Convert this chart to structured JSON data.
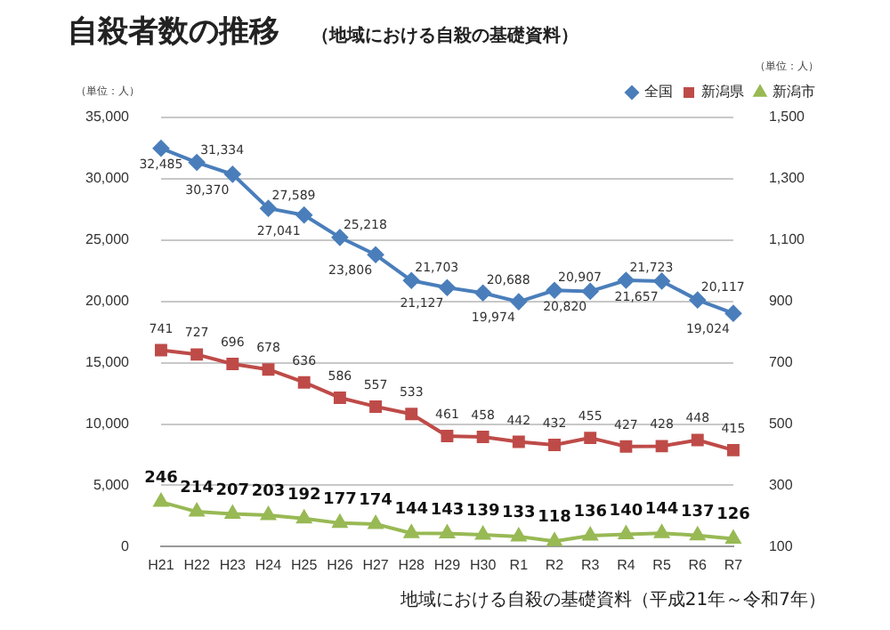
{
  "chart_data": {
    "type": "line",
    "title": "自殺者数の推移",
    "subtitle": "（地域における自殺の基礎資料）",
    "categories": [
      "H21",
      "H22",
      "H23",
      "H24",
      "H25",
      "H26",
      "H27",
      "H28",
      "H29",
      "H30",
      "R1",
      "R2",
      "R3",
      "R4",
      "R5",
      "R6",
      "R7"
    ],
    "series": [
      {
        "name": "全国",
        "color": "#4a7ebb",
        "marker": "diamond",
        "values": [
          32485,
          31334,
          30370,
          27589,
          27041,
          25218,
          23806,
          21703,
          21127,
          20688,
          19974,
          20907,
          20820,
          21723,
          21657,
          20117,
          19024
        ],
        "value_labels": [
          "32,485",
          "31,334",
          "30,370",
          "27,589",
          "27,041",
          "25,218",
          "23,806",
          "21,703",
          "21,127",
          "20,688",
          "19,974",
          "20,907",
          "20,820",
          "21,723",
          "21,657",
          "20,117",
          "19,024"
        ]
      },
      {
        "name": "新潟県",
        "color": "#be4b48",
        "marker": "square",
        "axis": "y2",
        "values": [
          741,
          727,
          696,
          678,
          636,
          586,
          557,
          533,
          461,
          458,
          442,
          432,
          455,
          427,
          428,
          448,
          415
        ]
      },
      {
        "name": "新潟市",
        "color": "#98b954",
        "marker": "triangle",
        "axis": "y2",
        "values": [
          246,
          214,
          207,
          203,
          192,
          177,
          174,
          144,
          143,
          139,
          133,
          118,
          136,
          140,
          144,
          137,
          126
        ]
      }
    ],
    "ylim": [
      0,
      35000
    ],
    "yticks": [
      0,
      {
        "value": 5000,
        "label": "5,000"
      },
      {
        "value": 10000,
        "label": "10,000"
      },
      {
        "value": 15000,
        "label": "15,000"
      },
      {
        "value": 20000,
        "label": "20,000"
      },
      {
        "value": 25000,
        "label": "25,000"
      },
      {
        "value": 30000,
        "label": "30,000"
      },
      {
        "value": 35000,
        "label": "35,000"
      }
    ],
    "y2lim": [
      100,
      1500
    ],
    "y2ticks": [
      100,
      300,
      500,
      700,
      900,
      {
        "value": 1100,
        "label": "1,100"
      },
      {
        "value": 1300,
        "label": "1,300"
      },
      {
        "value": 1500,
        "label": "1,500"
      }
    ],
    "grid": "y",
    "legend": "top right",
    "data_labels": true,
    "annotations": [
      "（単位：人）",
      "（単位：人）",
      "地域における自殺の基礎資料（平成21年～令和7年）"
    ]
  }
}
